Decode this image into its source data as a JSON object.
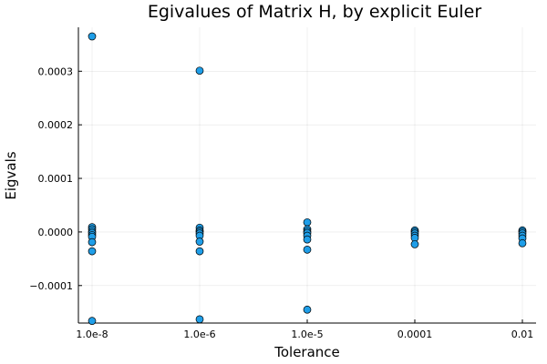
{
  "chart_data": {
    "type": "scatter",
    "title": "Egivalues of Matrix H, by explicit Euler",
    "xlabel": "Tolerance",
    "ylabel": "Eigvals",
    "categories": [
      "1.0e-8",
      "1.0e-6",
      "1.0e-5",
      "0.0001",
      "0.01"
    ],
    "y_ticks": [
      -0.0001,
      0,
      0.0001,
      0.0002,
      0.0003
    ],
    "y_tick_labels": [
      "−0.0001",
      "0.0000",
      "0.0001",
      "0.0002",
      "0.0003"
    ],
    "ylim": [
      -0.00017,
      0.000382
    ],
    "grid": true,
    "legend": "none",
    "marker_color": "#1f9ee8",
    "series": [
      {
        "points": [
          {
            "category": "1.0e-8",
            "y": 0.000365
          },
          {
            "category": "1.0e-8",
            "y": 9e-06
          },
          {
            "category": "1.0e-8",
            "y": 5e-06
          },
          {
            "category": "1.0e-8",
            "y": 1e-06
          },
          {
            "category": "1.0e-8",
            "y": -2e-06
          },
          {
            "category": "1.0e-8",
            "y": -6e-06
          },
          {
            "category": "1.0e-8",
            "y": -9e-06
          },
          {
            "category": "1.0e-8",
            "y": -1.9e-05
          },
          {
            "category": "1.0e-8",
            "y": -3.6e-05
          },
          {
            "category": "1.0e-8",
            "y": -0.000166
          },
          {
            "category": "1.0e-6",
            "y": 0.000301
          },
          {
            "category": "1.0e-6",
            "y": 8e-06
          },
          {
            "category": "1.0e-6",
            "y": 3e-06
          },
          {
            "category": "1.0e-6",
            "y": 0.0
          },
          {
            "category": "1.0e-6",
            "y": -3e-06
          },
          {
            "category": "1.0e-6",
            "y": -7e-06
          },
          {
            "category": "1.0e-6",
            "y": -1.8e-05
          },
          {
            "category": "1.0e-6",
            "y": -3.6e-05
          },
          {
            "category": "1.0e-6",
            "y": -0.000163
          },
          {
            "category": "1.0e-5",
            "y": 1.8e-05
          },
          {
            "category": "1.0e-5",
            "y": 5e-06
          },
          {
            "category": "1.0e-5",
            "y": 1e-06
          },
          {
            "category": "1.0e-5",
            "y": -2e-06
          },
          {
            "category": "1.0e-5",
            "y": -7e-06
          },
          {
            "category": "1.0e-5",
            "y": -1.4e-05
          },
          {
            "category": "1.0e-5",
            "y": -3.3e-05
          },
          {
            "category": "1.0e-5",
            "y": -0.000145
          },
          {
            "category": "0.0001",
            "y": 3e-06
          },
          {
            "category": "0.0001",
            "y": 0.0
          },
          {
            "category": "0.0001",
            "y": -3e-06
          },
          {
            "category": "0.0001",
            "y": -7e-06
          },
          {
            "category": "0.0001",
            "y": -1.1e-05
          },
          {
            "category": "0.0001",
            "y": -2.3e-05
          },
          {
            "category": "0.01",
            "y": 3e-06
          },
          {
            "category": "0.01",
            "y": 0.0
          },
          {
            "category": "0.01",
            "y": -3e-06
          },
          {
            "category": "0.01",
            "y": -7e-06
          },
          {
            "category": "0.01",
            "y": -1.2e-05
          },
          {
            "category": "0.01",
            "y": -2.1e-05
          }
        ]
      }
    ]
  }
}
